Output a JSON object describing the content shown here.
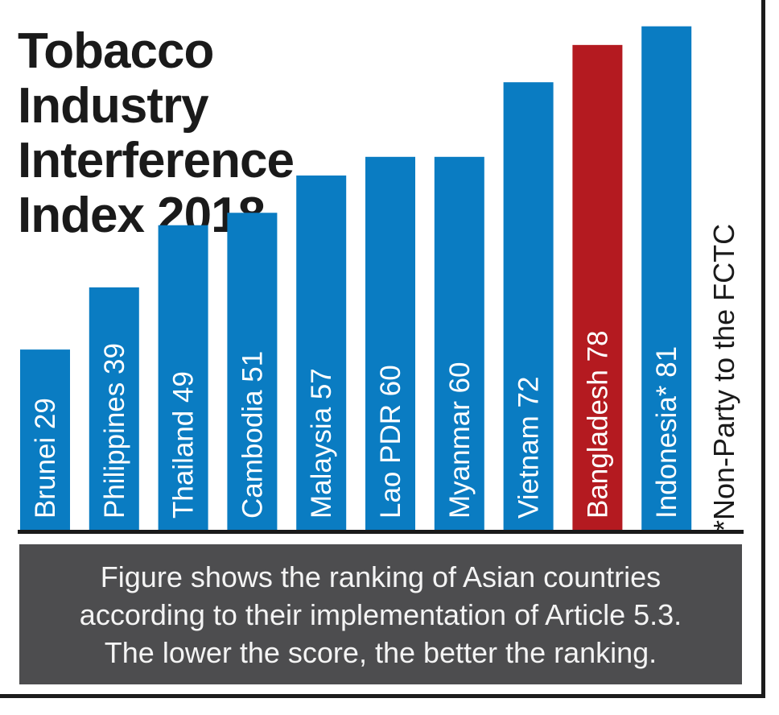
{
  "title_lines": [
    "Tobacco Industry",
    "Interference",
    "Index 2018"
  ],
  "footnote": "*Non-Party to the FCTC",
  "caption_lines": [
    "Figure shows the ranking of Asian countries",
    "according to their implementation of Article 5.3.",
    "The lower the score, the better the ranking."
  ],
  "colors": {
    "bar": "#0a7cc2",
    "highlight": "#b41a20",
    "caption_bg": "#4d4d4f",
    "bar_text": "#ffffff"
  },
  "chart_data": {
    "type": "bar",
    "title": "Tobacco Industry Interference Index 2018",
    "orientation": "vertical",
    "categories": [
      "Brunei",
      "Philippines",
      "Thailand",
      "Cambodia",
      "Malaysia",
      "Lao PDR",
      "Myanmar",
      "Vietnam",
      "Bangladesh",
      "Indonesia*"
    ],
    "values": [
      29,
      39,
      49,
      51,
      57,
      60,
      60,
      72,
      78,
      81
    ],
    "bar_labels": [
      "Brunei 29",
      "Philippines 39",
      "Thailand 49",
      "Cambodia 51",
      "Malaysia 57",
      "Lao PDR 60",
      "Myanmar 60",
      "Vietnam 72",
      "Bangladesh 78",
      "Indonesia* 81"
    ],
    "highlighted": "Bangladesh",
    "label_position": "inside bar, rotated vertical",
    "grid": false,
    "legend": "none"
  }
}
